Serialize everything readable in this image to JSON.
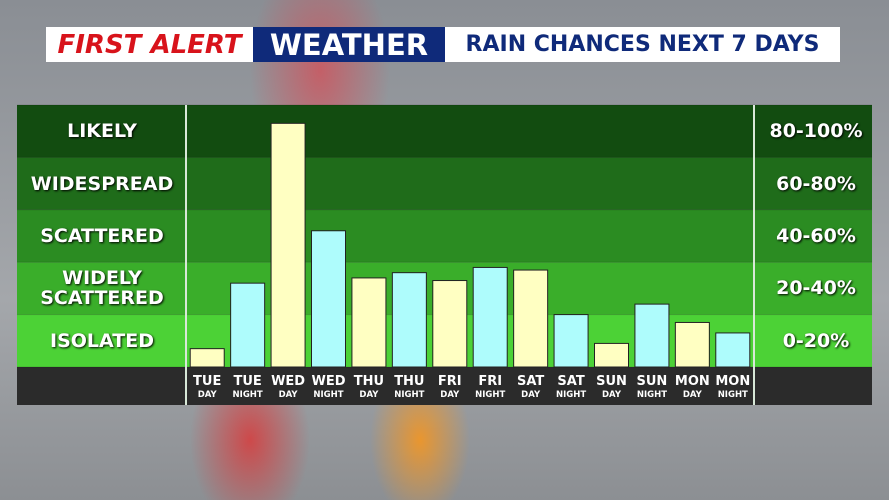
{
  "header": {
    "brand": "FIRST ALERT",
    "section": "WEATHER",
    "title": "RAIN CHANCES NEXT 7 DAYS"
  },
  "chart_data": {
    "type": "bar",
    "categories": [
      {
        "day": "TUE",
        "part": "DAY"
      },
      {
        "day": "TUE",
        "part": "NIGHT"
      },
      {
        "day": "WED",
        "part": "DAY"
      },
      {
        "day": "WED",
        "part": "NIGHT"
      },
      {
        "day": "THU",
        "part": "DAY"
      },
      {
        "day": "THU",
        "part": "NIGHT"
      },
      {
        "day": "FRI",
        "part": "DAY"
      },
      {
        "day": "FRI",
        "part": "NIGHT"
      },
      {
        "day": "SAT",
        "part": "DAY"
      },
      {
        "day": "SAT",
        "part": "NIGHT"
      },
      {
        "day": "SUN",
        "part": "DAY"
      },
      {
        "day": "SUN",
        "part": "NIGHT"
      },
      {
        "day": "MON",
        "part": "DAY"
      },
      {
        "day": "MON",
        "part": "NIGHT"
      }
    ],
    "values": [
      7,
      32,
      93,
      52,
      34,
      36,
      33,
      38,
      37,
      20,
      9,
      24,
      17,
      13
    ],
    "colors": [
      "#ffffc2",
      "#aefcfc",
      "#ffffc2",
      "#aefcfc",
      "#ffffc2",
      "#aefcfc",
      "#ffffc2",
      "#aefcfc",
      "#ffffc2",
      "#aefcfc",
      "#ffffc2",
      "#aefcfc",
      "#ffffc2",
      "#aefcfc"
    ],
    "ylim": [
      0,
      100
    ],
    "yticks": [
      0,
      20,
      40,
      60,
      80,
      100
    ],
    "bands": [
      {
        "label": "ISOLATED",
        "range": "0-20%",
        "color": "#4cd236"
      },
      {
        "label": "WIDELY SCATTERED",
        "range": "20-40%",
        "color": "#3aae2a"
      },
      {
        "label": "SCATTERED",
        "range": "40-60%",
        "color": "#2b8c22"
      },
      {
        "label": "WIDESPREAD",
        "range": "60-80%",
        "color": "#1f6c1a"
      },
      {
        "label": "LIKELY",
        "range": "80-100%",
        "color": "#124c10"
      }
    ]
  }
}
